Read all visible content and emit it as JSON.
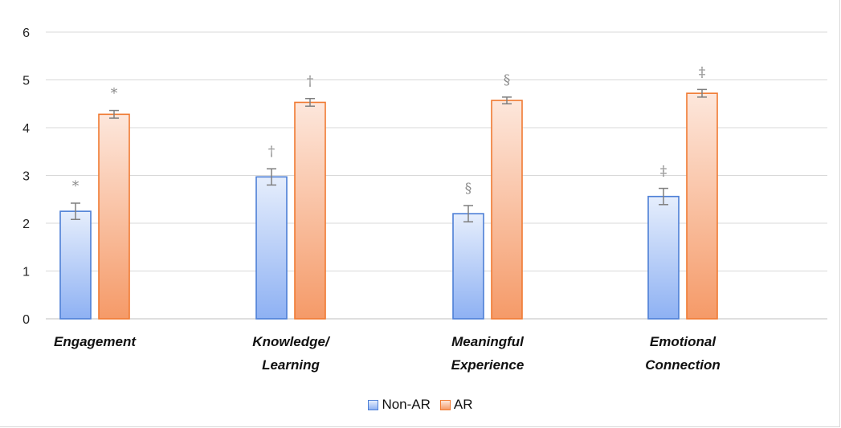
{
  "chart_data": {
    "type": "bar",
    "categories": [
      [
        "Engagement"
      ],
      [
        "Knowledge/",
        "Learning"
      ],
      [
        "Meaningful",
        "Experience"
      ],
      [
        "Emotional",
        "Connection"
      ]
    ],
    "series": [
      {
        "name": "Non-AR",
        "values": [
          2.25,
          2.97,
          2.2,
          2.56
        ],
        "errors": [
          0.17,
          0.17,
          0.17,
          0.17
        ],
        "markers": [
          "*",
          "†",
          "§",
          "‡"
        ],
        "color_top": "#e6eefc",
        "color_bottom": "#8eb1f3",
        "border": "#4d7fd6"
      },
      {
        "name": "AR",
        "values": [
          4.28,
          4.53,
          4.57,
          4.72
        ],
        "errors": [
          0.08,
          0.08,
          0.07,
          0.08
        ],
        "markers": [
          "*",
          "†",
          "§",
          "‡"
        ],
        "color_top": "#fde7dc",
        "color_bottom": "#f59a68",
        "border": "#f07a32"
      }
    ],
    "ylim": [
      0,
      6
    ],
    "yticks": [
      "0",
      "1",
      "2",
      "3",
      "4",
      "5",
      "6"
    ],
    "grid": true,
    "legend_position": "bottom",
    "title": "",
    "xlabel": "",
    "ylabel": ""
  }
}
